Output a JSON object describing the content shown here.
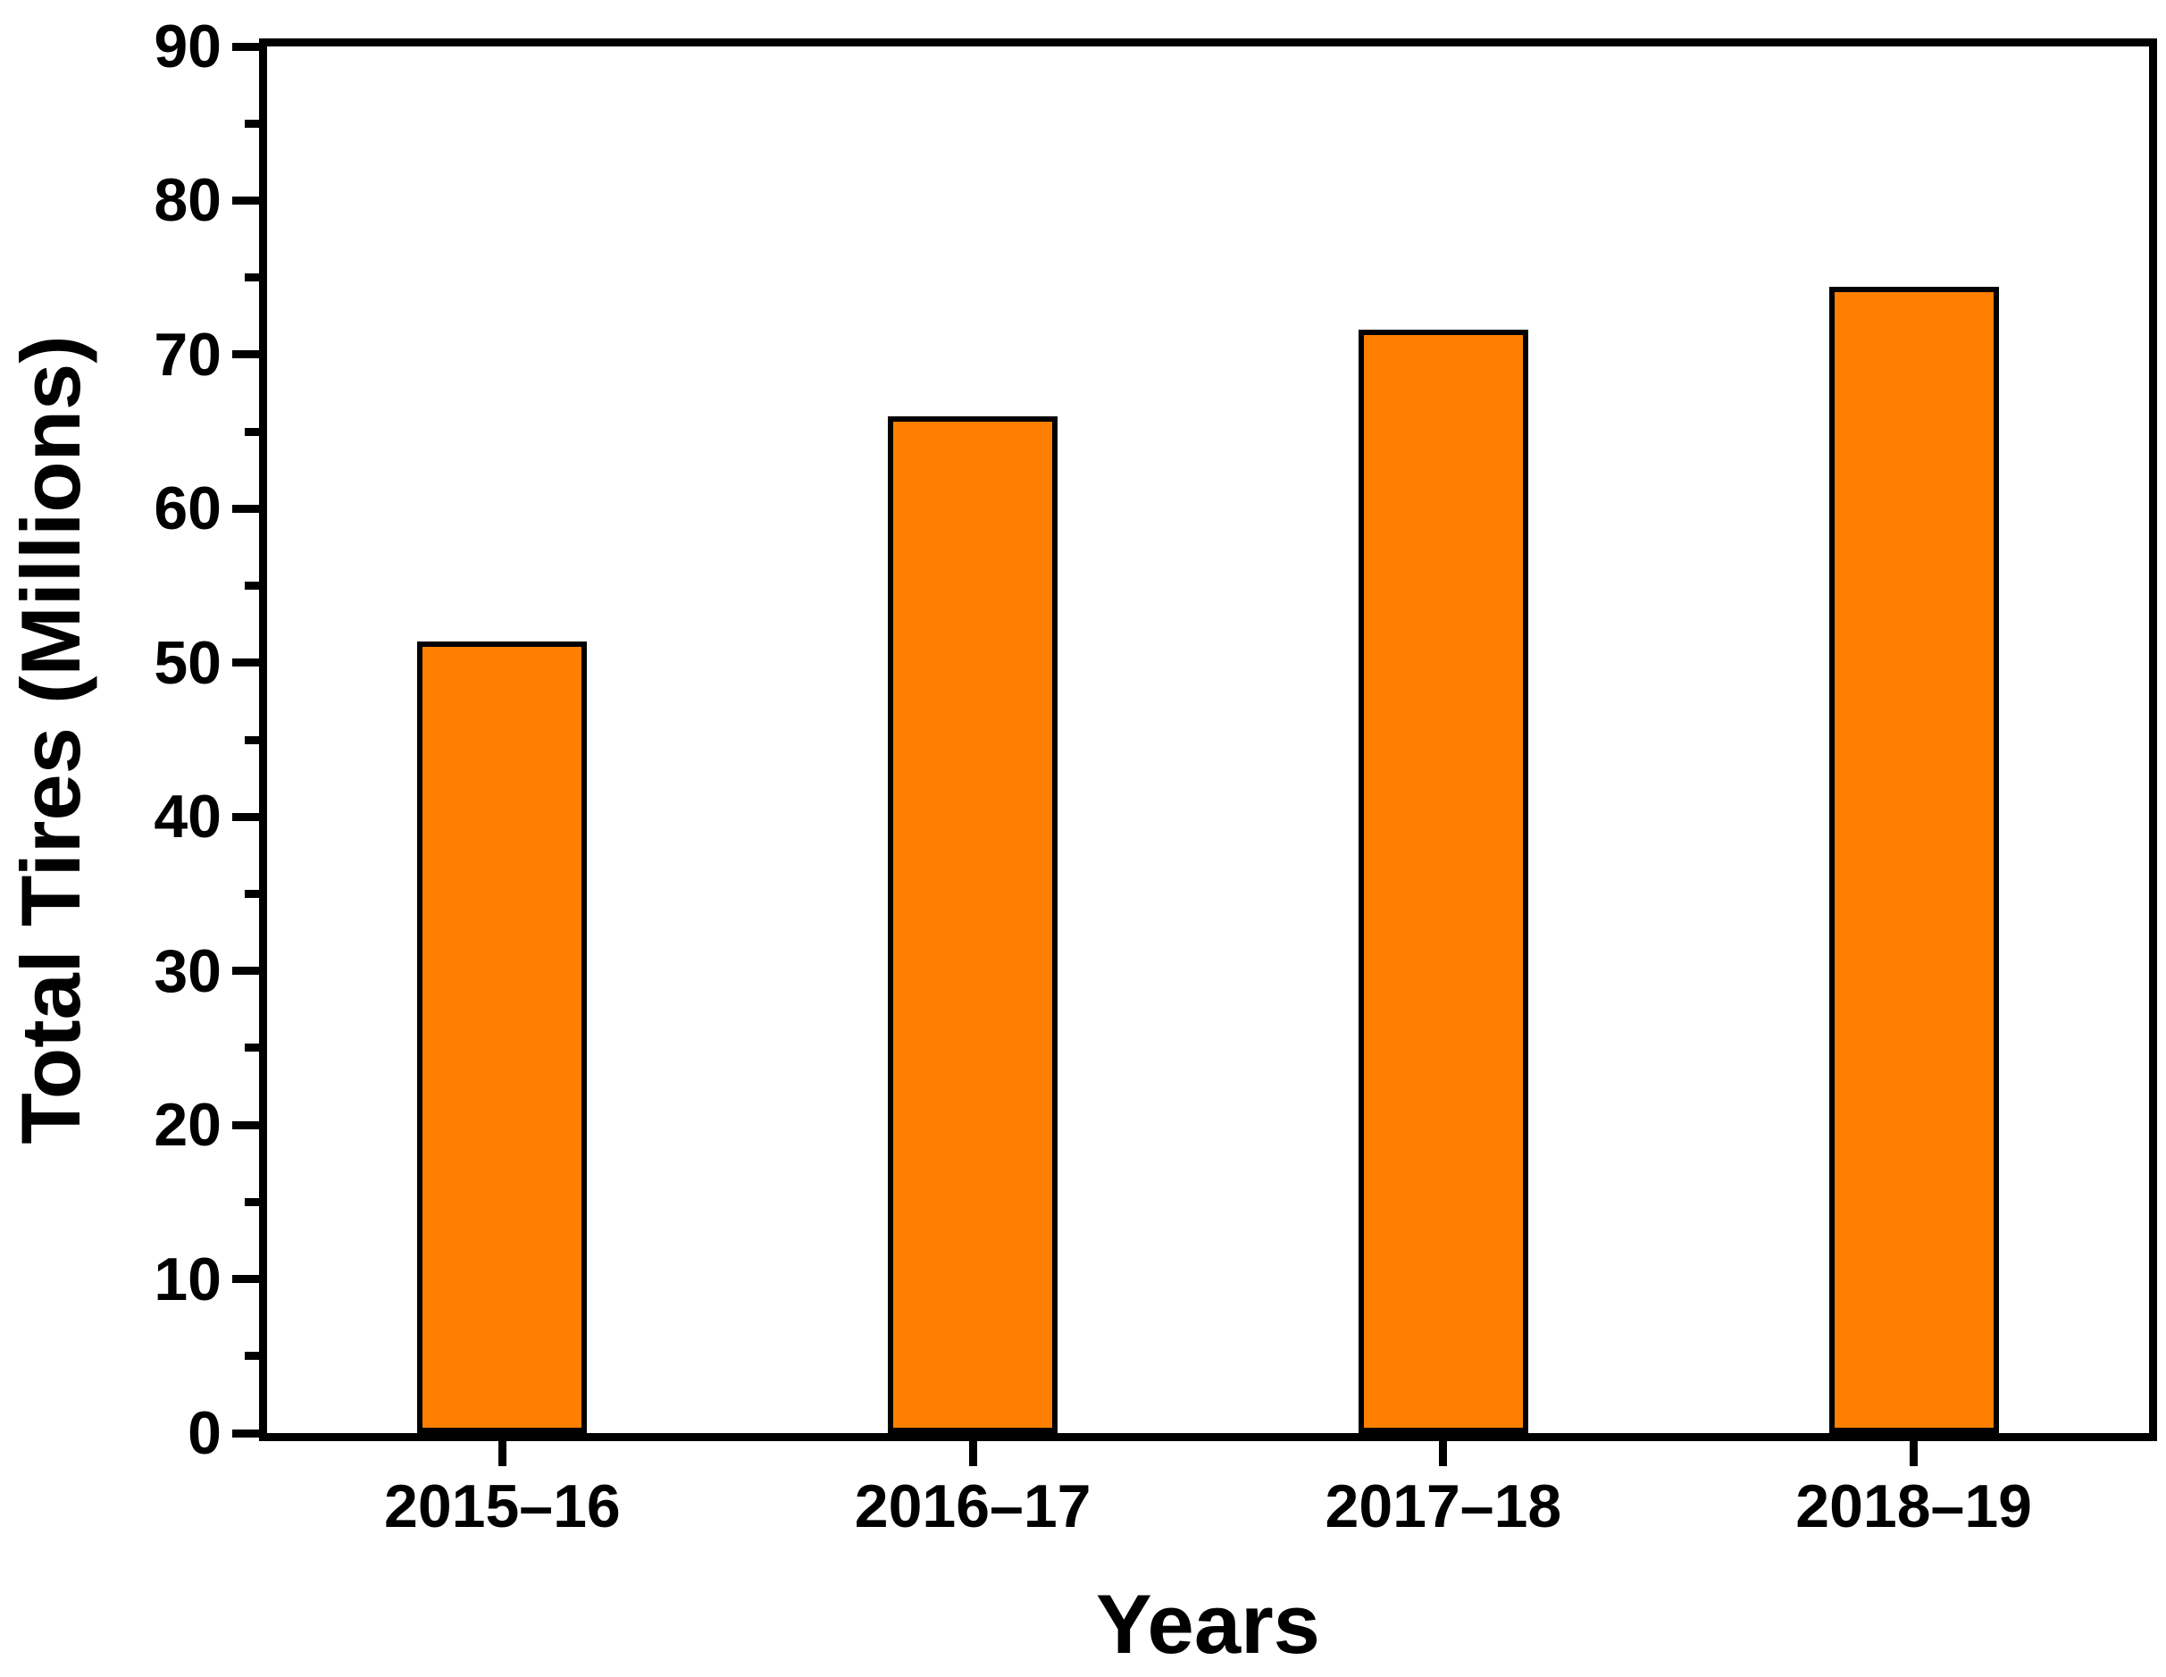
{
  "chart_data": {
    "type": "bar",
    "categories": [
      "2015–16",
      "2016–17",
      "2017–18",
      "2018–19"
    ],
    "values": [
      51.4,
      66.0,
      71.6,
      74.4
    ],
    "title": "",
    "xlabel": "Years",
    "ylabel": "Total Tires (Millions)",
    "ylim": [
      0,
      90
    ],
    "y_major_tick_step": 10,
    "y_minor_tick_step": 5,
    "y_tick_labels": [
      "0",
      "10",
      "20",
      "30",
      "40",
      "50",
      "60",
      "70",
      "80",
      "90"
    ],
    "bar_color": "#ff8000",
    "bar_border_color": "#000000",
    "axis_color": "#000000",
    "background_color": "#ffffff",
    "grid": "off",
    "legend": "none"
  }
}
